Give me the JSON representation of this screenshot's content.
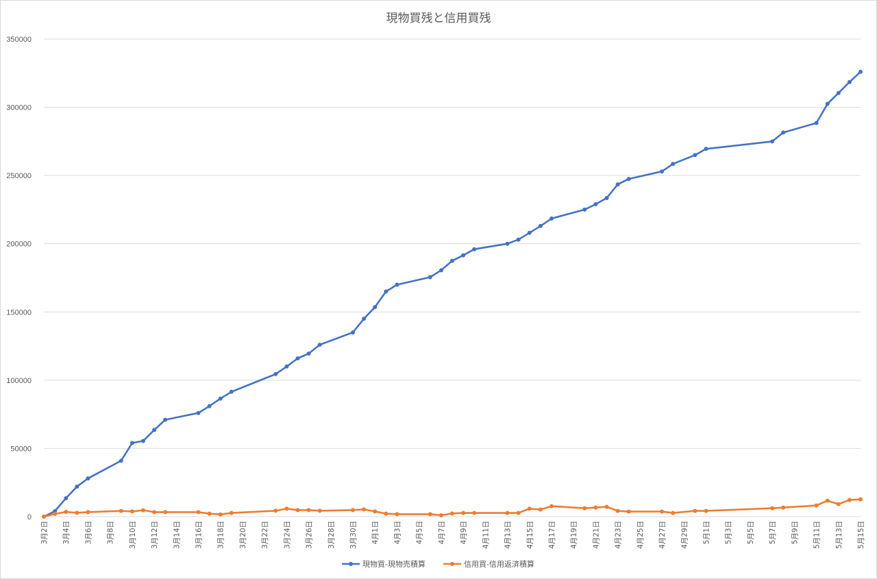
{
  "chart_data": {
    "type": "line",
    "title": "現物買残と信用買残",
    "xlabel": "",
    "ylabel": "",
    "ylim": [
      0,
      350000
    ],
    "yticks": [
      0,
      50000,
      100000,
      150000,
      200000,
      250000,
      300000,
      350000
    ],
    "ytick_labels": [
      "0",
      "50000",
      "100000",
      "150000",
      "200000",
      "250000",
      "300000",
      "350000"
    ],
    "x_range": [
      "3月2日",
      "5月15日"
    ],
    "xtick_labels": [
      "3月2日",
      "3月4日",
      "3月6日",
      "3月8日",
      "3月10日",
      "3月12日",
      "3月14日",
      "3月16日",
      "3月18日",
      "3月20日",
      "3月22日",
      "3月24日",
      "3月26日",
      "3月28日",
      "3月30日",
      "4月1日",
      "4月3日",
      "4月5日",
      "4月7日",
      "4月9日",
      "4月11日",
      "4月13日",
      "4月15日",
      "4月17日",
      "4月19日",
      "4月21日",
      "4月23日",
      "4月25日",
      "4月27日",
      "4月29日",
      "5月1日",
      "5月3日",
      "5月5日",
      "5月7日",
      "5月9日",
      "5月11日",
      "5月13日",
      "5月15日"
    ],
    "grid": true,
    "legend_position": "bottom",
    "series": [
      {
        "name": "現物買-現物売積算",
        "color": "#4472c4",
        "x": [
          "3月2日",
          "3月3日",
          "3月4日",
          "3月5日",
          "3月6日",
          "3月9日",
          "3月10日",
          "3月11日",
          "3月12日",
          "3月13日",
          "3月16日",
          "3月17日",
          "3月18日",
          "3月19日",
          "3月23日",
          "3月24日",
          "3月25日",
          "3月26日",
          "3月27日",
          "3月30日",
          "3月31日",
          "4月1日",
          "4月2日",
          "4月3日",
          "4月6日",
          "4月7日",
          "4月8日",
          "4月9日",
          "4月10日",
          "4月13日",
          "4月14日",
          "4月15日",
          "4月16日",
          "4月17日",
          "4月20日",
          "4月21日",
          "4月22日",
          "4月23日",
          "4月24日",
          "4月27日",
          "4月28日",
          "4月30日",
          "5月1日",
          "5月7日",
          "5月8日",
          "5月11日",
          "5月12日",
          "5月13日",
          "5月14日",
          "5月15日"
        ],
        "values": [
          0,
          4000,
          13500,
          22000,
          28000,
          41000,
          54000,
          55500,
          63500,
          71000,
          76000,
          81000,
          86500,
          91500,
          104500,
          110000,
          116000,
          119500,
          126000,
          135000,
          145000,
          153500,
          165000,
          170000,
          175500,
          180500,
          187500,
          191500,
          196000,
          200000,
          203000,
          208000,
          213000,
          218500,
          225000,
          229000,
          233500,
          243500,
          247500,
          253000,
          258500,
          265000,
          269500,
          275000,
          281500,
          288500,
          302500,
          310500,
          318500,
          326000
        ]
      },
      {
        "name": "信用買-信用返済積算",
        "color": "#ed7d31",
        "x": [
          "3月2日",
          "3月3日",
          "3月4日",
          "3月5日",
          "3月6日",
          "3月9日",
          "3月10日",
          "3月11日",
          "3月12日",
          "3月13日",
          "3月16日",
          "3月17日",
          "3月18日",
          "3月19日",
          "3月23日",
          "3月24日",
          "3月25日",
          "3月26日",
          "3月27日",
          "3月30日",
          "3月31日",
          "4月1日",
          "4月2日",
          "4月3日",
          "4月6日",
          "4月7日",
          "4月8日",
          "4月9日",
          "4月10日",
          "4月13日",
          "4月14日",
          "4月15日",
          "4月16日",
          "4月17日",
          "4月20日",
          "4月21日",
          "4月22日",
          "4月23日",
          "4月24日",
          "4月27日",
          "4月28日",
          "4月30日",
          "5月1日",
          "5月7日",
          "5月8日",
          "5月11日",
          "5月12日",
          "5月13日",
          "5月14日",
          "5月15日"
        ],
        "values": [
          0,
          2000,
          3500,
          2800,
          3300,
          4200,
          3800,
          4700,
          3300,
          3300,
          3300,
          2200,
          1600,
          2700,
          4300,
          5800,
          4800,
          4800,
          4300,
          4800,
          5300,
          3800,
          2200,
          1800,
          1800,
          1000,
          2300,
          2700,
          2700,
          2700,
          2700,
          5800,
          5200,
          7700,
          6200,
          6700,
          7200,
          4200,
          3700,
          3700,
          2700,
          4200,
          4200,
          6200,
          6700,
          8200,
          11700,
          9200,
          12200,
          12700
        ]
      }
    ]
  }
}
